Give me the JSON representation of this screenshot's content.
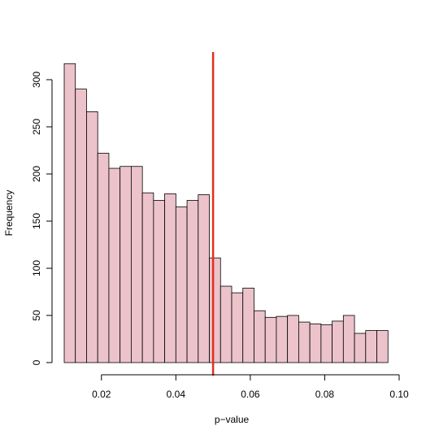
{
  "chart_data": {
    "type": "bar",
    "title": "",
    "xlabel": "p−value",
    "ylabel": "Frequency",
    "xlim": [
      0.01,
      0.1
    ],
    "ylim": [
      0,
      330
    ],
    "bin_width": 0.003,
    "bins": [
      {
        "x0": 0.01,
        "x1": 0.013,
        "value": 317
      },
      {
        "x0": 0.013,
        "x1": 0.016,
        "value": 290
      },
      {
        "x0": 0.016,
        "x1": 0.019,
        "value": 266
      },
      {
        "x0": 0.019,
        "x1": 0.022,
        "value": 222
      },
      {
        "x0": 0.022,
        "x1": 0.025,
        "value": 206
      },
      {
        "x0": 0.025,
        "x1": 0.028,
        "value": 208
      },
      {
        "x0": 0.028,
        "x1": 0.031,
        "value": 208
      },
      {
        "x0": 0.031,
        "x1": 0.034,
        "value": 180
      },
      {
        "x0": 0.034,
        "x1": 0.037,
        "value": 172
      },
      {
        "x0": 0.037,
        "x1": 0.04,
        "value": 179
      },
      {
        "x0": 0.04,
        "x1": 0.043,
        "value": 165
      },
      {
        "x0": 0.043,
        "x1": 0.046,
        "value": 172
      },
      {
        "x0": 0.046,
        "x1": 0.049,
        "value": 178
      },
      {
        "x0": 0.049,
        "x1": 0.052,
        "value": 111
      },
      {
        "x0": 0.052,
        "x1": 0.055,
        "value": 81
      },
      {
        "x0": 0.055,
        "x1": 0.058,
        "value": 74
      },
      {
        "x0": 0.058,
        "x1": 0.061,
        "value": 79
      },
      {
        "x0": 0.061,
        "x1": 0.064,
        "value": 55
      },
      {
        "x0": 0.064,
        "x1": 0.067,
        "value": 48
      },
      {
        "x0": 0.067,
        "x1": 0.07,
        "value": 49
      },
      {
        "x0": 0.07,
        "x1": 0.073,
        "value": 50
      },
      {
        "x0": 0.073,
        "x1": 0.076,
        "value": 43
      },
      {
        "x0": 0.076,
        "x1": 0.079,
        "value": 41
      },
      {
        "x0": 0.079,
        "x1": 0.082,
        "value": 40
      },
      {
        "x0": 0.082,
        "x1": 0.085,
        "value": 44
      },
      {
        "x0": 0.085,
        "x1": 0.088,
        "value": 50
      },
      {
        "x0": 0.088,
        "x1": 0.091,
        "value": 31
      },
      {
        "x0": 0.091,
        "x1": 0.094,
        "value": 34
      },
      {
        "x0": 0.094,
        "x1": 0.097,
        "value": 34
      }
    ],
    "x_ticks": [
      0.02,
      0.04,
      0.06,
      0.08,
      0.1
    ],
    "x_tick_labels": [
      "0.02",
      "0.04",
      "0.06",
      "0.08",
      "0.10"
    ],
    "y_ticks": [
      0,
      50,
      100,
      150,
      200,
      250,
      300
    ],
    "y_tick_labels": [
      "0",
      "50",
      "100",
      "150",
      "200",
      "250",
      "300"
    ],
    "vline": {
      "x": 0.05,
      "color": "#e0301e"
    },
    "bar_fill": "#ecc3cb",
    "bar_stroke": "#000000",
    "grid": false,
    "legend": "none"
  }
}
